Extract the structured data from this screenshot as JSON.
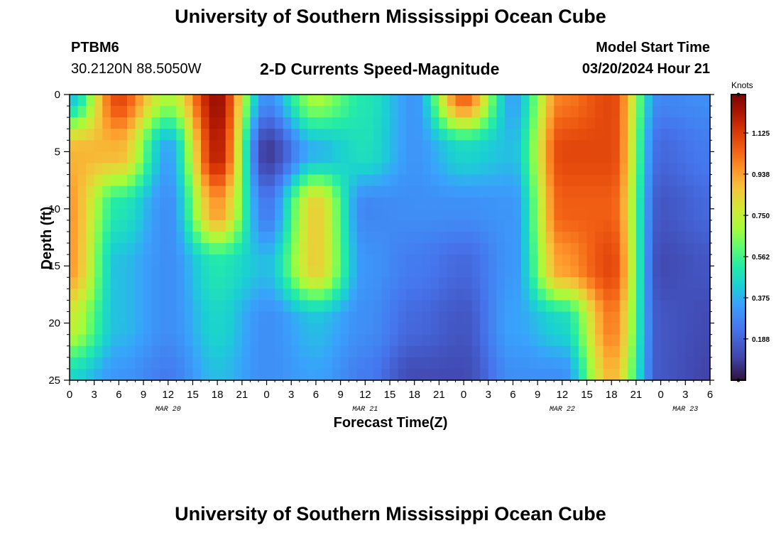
{
  "header": {
    "title": "University of Southern Mississippi Ocean Cube",
    "station": "PTBM6",
    "coordinates": "30.2120N  88.5050W",
    "subtitle": "2-D Currents Speed-Magnitude",
    "model_start_label": "Model Start Time",
    "model_start_value": "03/20/2024 Hour 21"
  },
  "footer": {
    "title": "University of Southern Mississippi Ocean Cube"
  },
  "colorbar": {
    "unit": "Knots",
    "ticks": [
      "1.125",
      "0.938",
      "0.750",
      "0.562",
      "0.375",
      "0.188"
    ],
    "min": 0,
    "max": 1.3
  },
  "colors": {
    "low": "#30123b",
    "mid": "#7cfc3a",
    "high": "#7a0403"
  },
  "chart_data": {
    "type": "heatmap",
    "title": "2-D Currents Speed-Magnitude",
    "xlabel": "Forecast Time(Z)",
    "ylabel": "Depth (ft)",
    "x_tick_labels": [
      "0",
      "3",
      "6",
      "9",
      "12",
      "15",
      "18",
      "21",
      "0",
      "3",
      "6",
      "9",
      "12",
      "15",
      "18",
      "21",
      "0",
      "3",
      "6",
      "9",
      "12",
      "15",
      "18",
      "21",
      "0",
      "3",
      "6"
    ],
    "date_labels": [
      {
        "label": "MAR 20",
        "hour": 12
      },
      {
        "label": "MAR 21",
        "hour": 36
      },
      {
        "label": "MAR 22",
        "hour": 60
      },
      {
        "label": "MAR 23",
        "hour": 75
      }
    ],
    "y_tick_labels": [
      "0",
      "5",
      "10",
      "15",
      "20",
      "25"
    ],
    "ylim": [
      0,
      25
    ],
    "xlim_hours": [
      0,
      78
    ],
    "z_unit": "Knots",
    "z_range": [
      0,
      1.3
    ],
    "grid_hours": [
      0,
      6,
      12,
      18,
      24,
      30,
      36,
      42,
      48,
      54,
      60,
      66,
      72,
      78
    ],
    "grid_depths_ft": [
      0,
      5,
      10,
      15,
      20,
      25
    ],
    "speed_knots": [
      [
        0.4,
        1.1,
        0.7,
        1.25,
        0.3,
        0.7,
        0.5,
        0.32,
        1.05,
        0.35,
        1.0,
        1.1,
        0.28,
        0.3
      ],
      [
        0.9,
        0.9,
        0.35,
        1.2,
        0.08,
        0.38,
        0.48,
        0.32,
        0.45,
        0.4,
        1.1,
        1.1,
        0.2,
        0.25
      ],
      [
        0.95,
        0.5,
        0.3,
        0.95,
        0.25,
        0.85,
        0.28,
        0.3,
        0.3,
        0.32,
        1.05,
        1.05,
        0.15,
        0.2
      ],
      [
        0.95,
        0.4,
        0.3,
        0.5,
        0.4,
        0.85,
        0.32,
        0.25,
        0.2,
        0.32,
        0.95,
        1.1,
        0.12,
        0.15
      ],
      [
        0.75,
        0.4,
        0.3,
        0.45,
        0.3,
        0.4,
        0.3,
        0.2,
        0.15,
        0.35,
        0.45,
        1.0,
        0.15,
        0.12
      ],
      [
        0.45,
        0.32,
        0.25,
        0.4,
        0.3,
        0.35,
        0.25,
        0.12,
        0.12,
        0.3,
        0.3,
        0.9,
        0.15,
        0.1
      ]
    ]
  }
}
